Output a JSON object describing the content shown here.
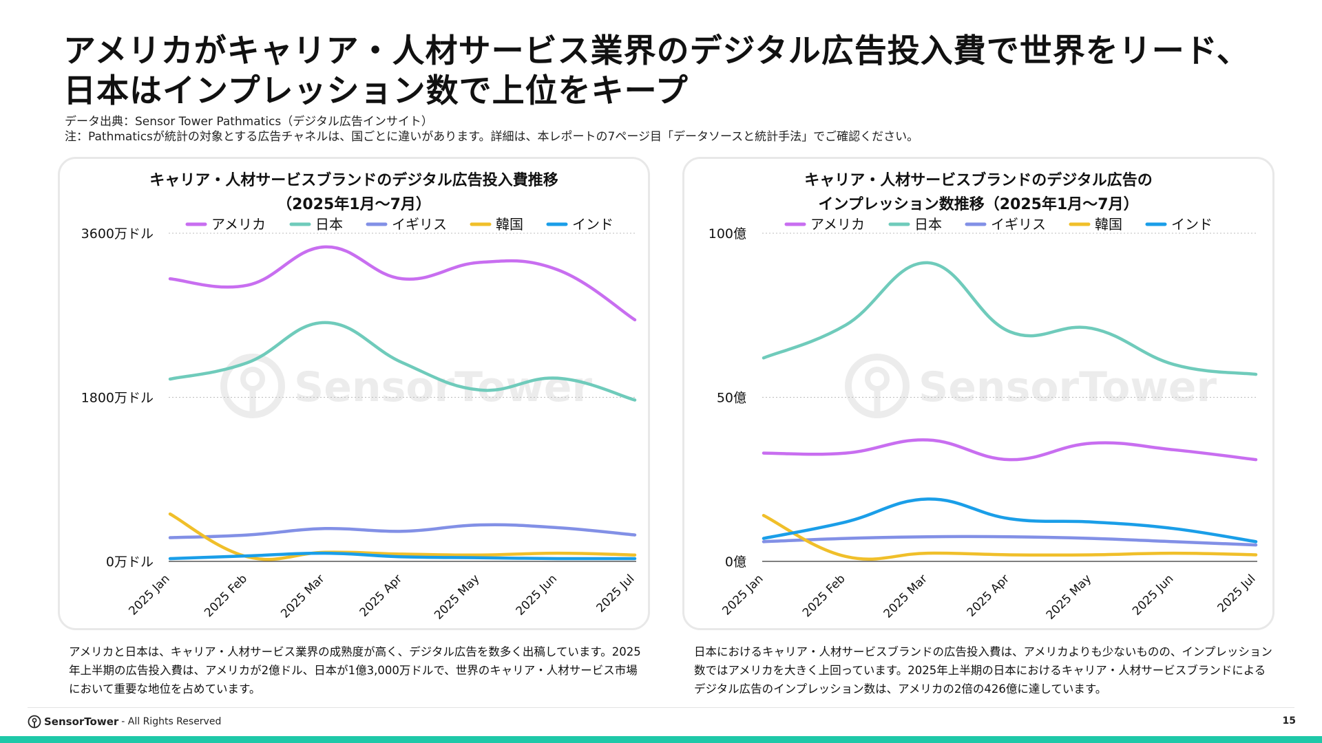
{
  "title": {
    "line1": "アメリカがキャリア・人材サービス業界のデジタル広告投入費で世界をリード、",
    "line2": "日本はインプレッション数で上位をキープ"
  },
  "source": "データ出典：Sensor Tower Pathmatics（デジタル広告インサイト）",
  "note": "注：Pathmaticsが統計の対象とする広告チャネルは、国ごとに違いがあります。詳細は、本レポートの7ページ目「データソースと統計手法」でご確認ください。",
  "watermark": "SensorTower",
  "colors": {
    "アメリカ": "#c86ef0",
    "日本": "#6fcbbb",
    "イギリス": "#8290e6",
    "韓国": "#f0bf2a",
    "インド": "#1a9ee8",
    "accent": "#1ec8a8"
  },
  "chart_data": [
    {
      "type": "line",
      "title": [
        "キャリア・人材サービスブランドのデジタル広告投入費推移",
        "（2025年1月〜7月）"
      ],
      "x": [
        "2025 Jan",
        "2025 Feb",
        "2025 Mar",
        "2025 Apr",
        "2025 May",
        "2025 Jun",
        "2025 Jul"
      ],
      "yticks": [
        0,
        1800,
        3600
      ],
      "ytick_labels": [
        "0万ドル",
        "1800万ドル",
        "3600万ドル"
      ],
      "ylim": [
        0,
        3600
      ],
      "unit": "万ドル",
      "grid": true,
      "legend": "top",
      "series": [
        {
          "name": "アメリカ",
          "values": [
            3100,
            3030,
            3450,
            3100,
            3280,
            3200,
            2650
          ]
        },
        {
          "name": "日本",
          "values": [
            2000,
            2180,
            2620,
            2180,
            1880,
            2010,
            1770
          ]
        },
        {
          "name": "イギリス",
          "values": [
            260,
            290,
            360,
            330,
            400,
            370,
            290
          ]
        },
        {
          "name": "韓国",
          "values": [
            520,
            50,
            100,
            80,
            70,
            90,
            70
          ]
        },
        {
          "name": "インド",
          "values": [
            30,
            60,
            90,
            50,
            40,
            30,
            30
          ]
        }
      ]
    },
    {
      "type": "line",
      "title": [
        "キャリア・人材サービスブランドのデジタル広告の",
        "インプレッション数推移（2025年1月〜7月）"
      ],
      "x": [
        "2025 Jan",
        "2025 Feb",
        "2025 Mar",
        "2025 Apr",
        "2025 May",
        "2025 Jun",
        "2025 Jul"
      ],
      "yticks": [
        0,
        50,
        100
      ],
      "ytick_labels": [
        "0億",
        "50億",
        "100億"
      ],
      "ylim": [
        0,
        100
      ],
      "unit": "億",
      "grid": true,
      "legend": "top",
      "series": [
        {
          "name": "アメリカ",
          "values": [
            33,
            33,
            37,
            31,
            36,
            34,
            31
          ]
        },
        {
          "name": "日本",
          "values": [
            62,
            72,
            91,
            70,
            71,
            60,
            57
          ]
        },
        {
          "name": "イギリス",
          "values": [
            6,
            7,
            7.5,
            7.5,
            7,
            6,
            5
          ]
        },
        {
          "name": "韓国",
          "values": [
            14,
            1.5,
            2.5,
            2,
            2,
            2.5,
            2
          ]
        },
        {
          "name": "インド",
          "values": [
            7,
            12,
            19,
            13,
            12,
            10,
            6
          ]
        }
      ]
    }
  ],
  "descriptions": {
    "left": "アメリカと日本は、キャリア・人材サービス業界の成熟度が高く、デジタル広告を数多く出稿しています。2025年上半期の広告投入費は、アメリカが2億ドル、日本が1億3,000万ドルで、世界のキャリア・人材サービス市場において重要な地位を占めています。",
    "right": "日本におけるキャリア・人材サービスブランドの広告投入費は、アメリカよりも少ないものの、インプレッション数ではアメリカを大きく上回っています。2025年上半期の日本におけるキャリア・人材サービスブランドによるデジタル広告のインプレッション数は、アメリカの2倍の426億に達しています。"
  },
  "footer": {
    "brand": "SensorTower",
    "rights": " - All Rights Reserved",
    "page": "15"
  }
}
